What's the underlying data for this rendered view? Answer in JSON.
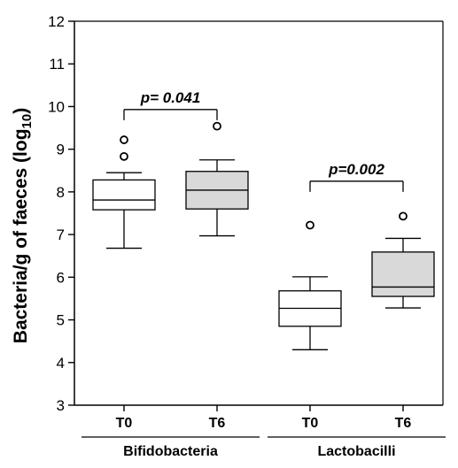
{
  "chart_data": {
    "type": "box",
    "title": "",
    "ylabel": "Bacteria/g of faeces (log",
    "ylabel_sub": "10",
    "ylabel_close": ")",
    "ylim": [
      3,
      12
    ],
    "yticks": [
      3,
      4,
      5,
      6,
      7,
      8,
      9,
      10,
      11,
      12
    ],
    "grid": false,
    "categories": [
      "T0",
      "T6",
      "T0",
      "T6"
    ],
    "groups": [
      {
        "label": "Bifidobacteria",
        "members": [
          0,
          1
        ]
      },
      {
        "label": "Lactobacilli",
        "members": [
          2,
          3
        ]
      }
    ],
    "boxes": [
      {
        "category": "T0",
        "group": "Bifidobacteria",
        "fill": "#ffffff",
        "whisker_low": 6.68,
        "q1": 7.58,
        "median": 7.81,
        "q3": 8.28,
        "whisker_high": 8.45,
        "outliers": [
          9.22,
          8.83
        ]
      },
      {
        "category": "T6",
        "group": "Bifidobacteria",
        "fill": "#d9d9d9",
        "whisker_low": 6.97,
        "q1": 7.6,
        "median": 8.04,
        "q3": 8.48,
        "whisker_high": 8.75,
        "outliers": [
          9.54
        ]
      },
      {
        "category": "T0",
        "group": "Lactobacilli",
        "fill": "#ffffff",
        "whisker_low": 4.3,
        "q1": 4.85,
        "median": 5.27,
        "q3": 5.68,
        "whisker_high": 6.01,
        "outliers": [
          7.22
        ]
      },
      {
        "category": "T6",
        "group": "Lactobacilli",
        "fill": "#d9d9d9",
        "whisker_low": 5.28,
        "q1": 5.55,
        "median": 5.77,
        "q3": 6.59,
        "whisker_high": 6.91,
        "outliers": [
          7.43
        ]
      }
    ],
    "annotations": [
      {
        "text": "p= 0.041",
        "between": [
          0,
          1
        ],
        "y": 9.93
      },
      {
        "text": "p=0.002",
        "between": [
          2,
          3
        ],
        "y": 8.25
      }
    ]
  }
}
